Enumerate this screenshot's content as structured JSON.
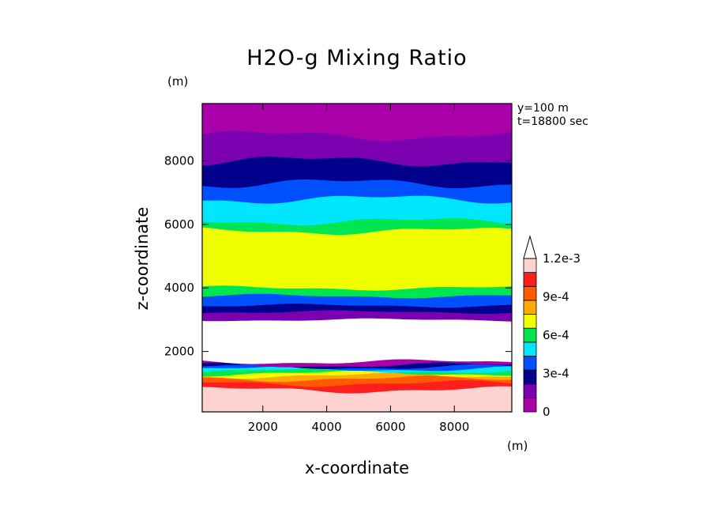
{
  "chart_data": {
    "type": "heatmap",
    "title": "H2O-g Mixing Ratio",
    "xlabel": "x-coordinate",
    "ylabel": "z-coordinate",
    "x_unit": "(m)",
    "y_unit": "(m)",
    "annotations": [
      "y=100 m",
      "t=18800 sec"
    ],
    "xlim": [
      100,
      9800
    ],
    "ylim": [
      100,
      9800
    ],
    "x_ticks": [
      2000,
      4000,
      6000,
      8000
    ],
    "y_ticks": [
      2000,
      4000,
      6000,
      8000
    ],
    "colorbar": {
      "levels": [
        0,
        0.00015,
        0.0003,
        0.00045,
        0.0006,
        0.00075,
        0.0009,
        0.00105,
        0.0012
      ],
      "tick_labels": [
        "0",
        "3e-4",
        "6e-4",
        "9e-4",
        "1.2e-3"
      ],
      "tick_values": [
        0,
        0.0003,
        0.0006,
        0.0009,
        0.0012
      ],
      "colors": [
        "#aa00aa",
        "#7a00b0",
        "#00008c",
        "#0050ff",
        "#00e6ff",
        "#00e650",
        "#f0ff00",
        "#ffaa00",
        "#ff5a00",
        "#ff1e1e",
        "#ffd2d2"
      ],
      "extend": "max"
    },
    "contour_bands": [
      {
        "z": [
          100,
          800
        ],
        "value": 0.00125,
        "color": "#ffd2d2"
      },
      {
        "z": [
          800,
          1000
        ],
        "value": 0.0011,
        "color": "#ff1e1e"
      },
      {
        "z": [
          1000,
          1150
        ],
        "value": 0.00095,
        "color": "#ff5a00"
      },
      {
        "z": [
          1150,
          1250
        ],
        "value": 0.0008,
        "color": "#ffaa00"
      },
      {
        "z": [
          1250,
          1320
        ],
        "value": 0.00065,
        "color": "#f0ff00"
      },
      {
        "z": [
          1320,
          1400
        ],
        "value": 0.0005,
        "color": "#00e650"
      },
      {
        "z": [
          1400,
          1460
        ],
        "value": 0.00038,
        "color": "#00e6ff"
      },
      {
        "z": [
          1460,
          1520
        ],
        "value": 0.00025,
        "color": "#0050ff"
      },
      {
        "z": [
          1520,
          1580
        ],
        "value": 0.00012,
        "color": "#00008c"
      },
      {
        "z": [
          1580,
          1680
        ],
        "value": 5e-05,
        "color": "#aa00aa"
      },
      {
        "z": [
          1680,
          3000
        ],
        "value": 0,
        "color": "#ffffff"
      },
      {
        "z": [
          3000,
          3250
        ],
        "value": 5e-05,
        "color": "#7a00b0"
      },
      {
        "z": [
          3250,
          3450
        ],
        "value": 0.0002,
        "color": "#00008c"
      },
      {
        "z": [
          3450,
          3750
        ],
        "value": 0.0003,
        "color": "#0050ff"
      },
      {
        "z": [
          3750,
          4000
        ],
        "value": 0.00045,
        "color": "#00e650"
      },
      {
        "z": [
          4000,
          5800
        ],
        "value": 0.0006,
        "color": "#f0ff00"
      },
      {
        "z": [
          5800,
          6100
        ],
        "value": 0.0005,
        "color": "#00e650"
      },
      {
        "z": [
          6100,
          6800
        ],
        "value": 0.0004,
        "color": "#00e6ff"
      },
      {
        "z": [
          6800,
          7300
        ],
        "value": 0.00028,
        "color": "#0050ff"
      },
      {
        "z": [
          7300,
          8000
        ],
        "value": 0.00018,
        "color": "#00008c"
      },
      {
        "z": [
          8000,
          8800
        ],
        "value": 0.0001,
        "color": "#7a00b0"
      },
      {
        "z": [
          8800,
          9800
        ],
        "value": 3e-05,
        "color": "#aa00aa"
      }
    ]
  }
}
